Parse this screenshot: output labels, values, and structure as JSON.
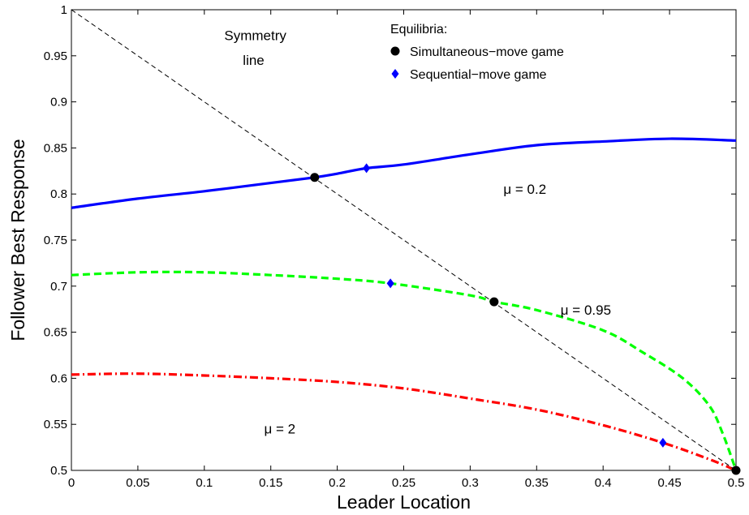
{
  "chart_data": {
    "type": "line",
    "xlabel": "Leader Location",
    "ylabel": "Follower Best Response",
    "xlim": [
      0,
      0.5
    ],
    "ylim": [
      0.5,
      1
    ],
    "xticks": [
      "0",
      "0.05",
      "0.1",
      "0.15",
      "0.2",
      "0.25",
      "0.3",
      "0.35",
      "0.4",
      "0.45",
      "0.5"
    ],
    "yticks": [
      "0.5",
      "0.55",
      "0.6",
      "0.65",
      "0.7",
      "0.75",
      "0.8",
      "0.85",
      "0.9",
      "0.95",
      "1"
    ],
    "grid": false,
    "legend": {
      "title": "Equilibria:",
      "placement": "top-center",
      "entries": [
        {
          "label": "Simultaneous−move game",
          "marker": "circle",
          "color": "#000000"
        },
        {
          "label": "Sequential−move game",
          "marker": "diamond",
          "color": "#0000ff"
        }
      ]
    },
    "series": [
      {
        "label": "μ = 0.2",
        "color": "#0000ff",
        "style": "solid",
        "x": [
          0,
          0.05,
          0.1,
          0.15,
          0.183,
          0.2,
          0.222,
          0.25,
          0.3,
          0.35,
          0.4,
          0.45,
          0.5
        ],
        "y": [
          0.785,
          0.795,
          0.803,
          0.812,
          0.818,
          0.822,
          0.828,
          0.832,
          0.843,
          0.853,
          0.857,
          0.86,
          0.858
        ]
      },
      {
        "label": "μ = 0.95",
        "color": "#00ff00",
        "style": "dashed",
        "x": [
          0,
          0.05,
          0.1,
          0.15,
          0.2,
          0.24,
          0.3,
          0.318,
          0.35,
          0.4,
          0.43,
          0.46,
          0.48,
          0.49,
          0.5
        ],
        "y": [
          0.712,
          0.715,
          0.715,
          0.712,
          0.708,
          0.703,
          0.69,
          0.683,
          0.674,
          0.652,
          0.628,
          0.6,
          0.57,
          0.54,
          0.5
        ]
      },
      {
        "label": "μ = 2",
        "color": "#ff0000",
        "style": "dash-dot",
        "x": [
          0,
          0.05,
          0.1,
          0.15,
          0.2,
          0.25,
          0.3,
          0.35,
          0.4,
          0.445,
          0.48,
          0.5
        ],
        "y": [
          0.604,
          0.605,
          0.603,
          0.6,
          0.596,
          0.589,
          0.578,
          0.566,
          0.549,
          0.53,
          0.512,
          0.5
        ]
      },
      {
        "label": "Symmetry line",
        "color": "#000000",
        "style": "thin-dashed",
        "x": [
          0,
          0.5
        ],
        "y": [
          1,
          0.5
        ]
      }
    ],
    "equilibria": {
      "simultaneous": [
        {
          "x": 0.183,
          "y": 0.818
        },
        {
          "x": 0.318,
          "y": 0.683
        },
        {
          "x": 0.5,
          "y": 0.5
        }
      ],
      "sequential": [
        {
          "x": 0.222,
          "y": 0.828
        },
        {
          "x": 0.24,
          "y": 0.703
        },
        {
          "x": 0.445,
          "y": 0.53
        }
      ]
    },
    "annotations": [
      {
        "text": "Symmetry",
        "x": 0.115,
        "y": 0.967
      },
      {
        "text": "line",
        "x": 0.129,
        "y": 0.94
      },
      {
        "text": "μ = 0.2",
        "x": 0.325,
        "y": 0.8
      },
      {
        "text": "μ = 0.95",
        "x": 0.368,
        "y": 0.669
      },
      {
        "text": "μ = 2",
        "x": 0.145,
        "y": 0.54
      }
    ]
  }
}
